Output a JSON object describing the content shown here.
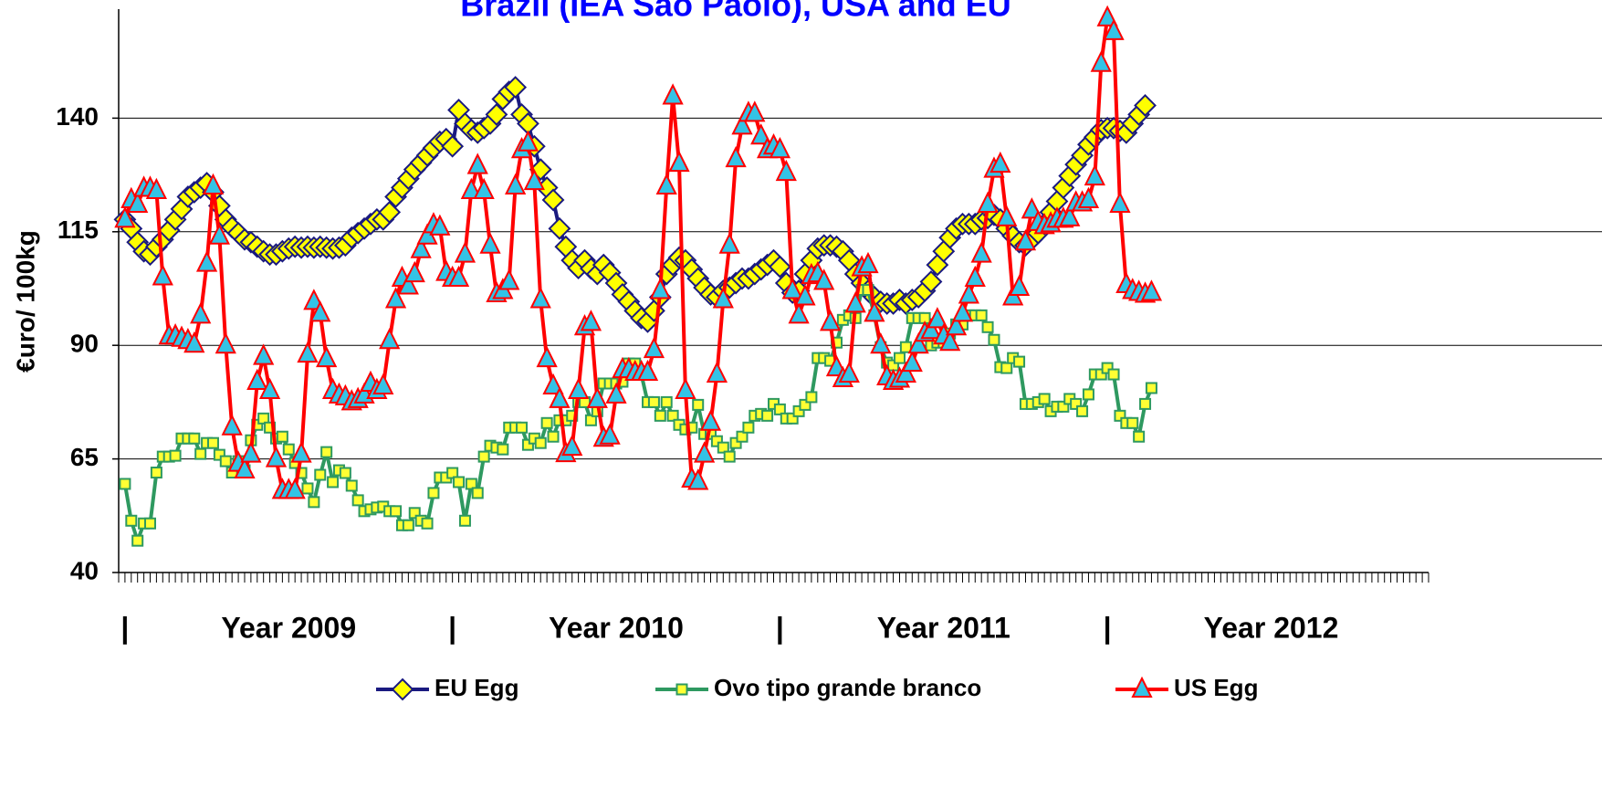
{
  "chart_data": {
    "type": "line",
    "title": "Brazil (IEA  São Paolo), USA and EU",
    "ylabel": "€uro/ 100kg",
    "xlim": [
      0,
      208
    ],
    "xminor_step": 1,
    "xticks": [
      {
        "value": 1,
        "label": "|"
      },
      {
        "value": 53,
        "label": "|"
      },
      {
        "value": 105,
        "label": "|"
      },
      {
        "value": 157,
        "label": "|"
      }
    ],
    "year_labels": [
      {
        "value": 27,
        "label": "Year 2009"
      },
      {
        "value": 79,
        "label": "Year 2010"
      },
      {
        "value": 131,
        "label": "Year 2011"
      },
      {
        "value": 183,
        "label": "Year 2012"
      }
    ],
    "ylim": [
      40,
      165
    ],
    "yticks": [
      40,
      65,
      90,
      115,
      140
    ],
    "grid": true,
    "legend": "bottom",
    "x": [
      1,
      2,
      3,
      4,
      5,
      6,
      7,
      8,
      9,
      10,
      11,
      12,
      13,
      14,
      15,
      16,
      17,
      18,
      19,
      20,
      21,
      22,
      23,
      24,
      25,
      26,
      27,
      28,
      29,
      30,
      31,
      32,
      33,
      34,
      35,
      36,
      37,
      38,
      39,
      40,
      41,
      42,
      43,
      44,
      45,
      46,
      47,
      48,
      49,
      50,
      51,
      52,
      53,
      54,
      55,
      56,
      57,
      58,
      59,
      60,
      61,
      62,
      63,
      64,
      65,
      66,
      67,
      68,
      69,
      70,
      71,
      72,
      73,
      74,
      75,
      76,
      77,
      78,
      79,
      80,
      81,
      82,
      83,
      84,
      85,
      86,
      87,
      88,
      89,
      90,
      91,
      92,
      93,
      94,
      95,
      96,
      97,
      98,
      99,
      100,
      101,
      102,
      103,
      104,
      105,
      106,
      107,
      108,
      109,
      110,
      111,
      112,
      113,
      114,
      115,
      116,
      117,
      118,
      119,
      120,
      121,
      122,
      123,
      124,
      125,
      126,
      127,
      128,
      129,
      130,
      131,
      132,
      133,
      134,
      135,
      136,
      137,
      138,
      139,
      140,
      141,
      142,
      143,
      144,
      145,
      146,
      147,
      148,
      149,
      150,
      151,
      152,
      153,
      154,
      155,
      156,
      157,
      158,
      159,
      160,
      161,
      162,
      163,
      164
    ],
    "series": [
      {
        "name": "EU Egg",
        "color": "#1a1a80",
        "marker": "diamond",
        "marker_color": "#ffff00",
        "values": [
          117.7,
          115.7,
          112.7,
          110.7,
          110,
          111.7,
          113.3,
          115.3,
          117.7,
          120,
          122.7,
          123.7,
          124.7,
          125.7,
          123.7,
          120.7,
          117.7,
          116,
          114.7,
          113.3,
          112.7,
          111.7,
          110.7,
          110,
          110,
          110.7,
          111.3,
          111.7,
          111.5,
          111.7,
          111.5,
          111.7,
          111.5,
          111.3,
          111.5,
          112,
          113.7,
          114.7,
          115.7,
          116.7,
          117.7,
          117.7,
          119.3,
          122.7,
          124.7,
          126.7,
          128.7,
          130.2,
          131.8,
          133.4,
          134.8,
          135.4,
          133.8,
          141.8,
          138.8,
          137.4,
          136.8,
          137.8,
          138.8,
          140.8,
          144.2,
          145.8,
          146.8,
          140.8,
          138.8,
          133.8,
          128.7,
          124.7,
          122,
          115.7,
          111.7,
          108.7,
          107,
          108.7,
          106.9,
          105.7,
          107.7,
          106,
          103.7,
          101.2,
          99.6,
          97.6,
          96,
          95.2,
          97.6,
          100.6,
          105.7,
          107.7,
          109.3,
          108.7,
          106.7,
          104.7,
          102.7,
          101.2,
          100.6,
          102,
          102.7,
          103.7,
          104.7,
          104.7,
          105.7,
          106.7,
          107.7,
          108.7,
          107.3,
          103.7,
          101.6,
          102,
          105.7,
          108.7,
          111.3,
          112,
          112,
          111.7,
          110.7,
          108.7,
          105.7,
          103.7,
          102,
          100.6,
          99.6,
          99.2,
          99.2,
          100,
          99.2,
          100,
          100.6,
          102,
          104,
          107.7,
          110.7,
          113.7,
          115.7,
          116.7,
          116.7,
          116.7,
          117.7,
          118,
          118.7,
          117.7,
          115.7,
          114.1,
          112.7,
          112,
          113.3,
          114.7,
          116.7,
          119.3,
          121.7,
          124.7,
          127.3,
          129.8,
          131.8,
          134.2,
          135.8,
          137.4,
          137.8,
          137.8,
          137.2,
          136.8,
          138.8,
          140.8,
          142.8,
          null
        ]
      },
      {
        "name": "Ovo tipo grande branco",
        "color": "#2e9960",
        "marker": "square",
        "marker_color": "#ffff33",
        "values": [
          59.5,
          51.4,
          47,
          50.8,
          50.8,
          62,
          65.5,
          65.5,
          65.7,
          69.5,
          69.5,
          69.5,
          66.1,
          68.5,
          68.5,
          65.9,
          64.5,
          62,
          64.5,
          62.5,
          69.1,
          72.5,
          73.9,
          71.9,
          69.5,
          69.9,
          67.1,
          64.1,
          61.9,
          58.5,
          55.5,
          61.5,
          66.5,
          59.9,
          62.5,
          61.9,
          59.1,
          55.9,
          53.5,
          53.9,
          54.3,
          54.5,
          53.5,
          53.5,
          50.4,
          50.4,
          53.1,
          51.4,
          50.8,
          57.5,
          60.9,
          60.9,
          61.9,
          59.9,
          51.4,
          59.5,
          57.5,
          65.5,
          67.9,
          67.5,
          67.1,
          71.9,
          71.9,
          71.9,
          68.1,
          69.5,
          68.5,
          72.9,
          69.9,
          73.5,
          73.5,
          74.5,
          77.5,
          77.5,
          73.5,
          75.5,
          81.6,
          81.6,
          81.6,
          82,
          86,
          86,
          83.6,
          77.5,
          77.5,
          74.5,
          77.5,
          74.5,
          72.5,
          71.5,
          71.9,
          76.9,
          70.5,
          70.5,
          68.9,
          67.5,
          65.5,
          68.5,
          69.9,
          71.9,
          74.5,
          74.9,
          74.5,
          77.1,
          75.9,
          73.9,
          73.9,
          75.5,
          76.9,
          78.6,
          87.2,
          87.2,
          86.6,
          90.6,
          95.6,
          96.6,
          96,
          102.2,
          102.2,
          96.6,
          89.6,
          86.2,
          85.6,
          87.2,
          89.6,
          96,
          96,
          96,
          90,
          90.6,
          90.6,
          92.6,
          94.6,
          94.6,
          96.6,
          96.6,
          96.6,
          94,
          91.2,
          85.2,
          85,
          87.2,
          86.4,
          77.1,
          77.1,
          77.5,
          78.2,
          75.5,
          76.5,
          76.5,
          78.2,
          77.1,
          75.5,
          79.2,
          83.6,
          83.6,
          85,
          83.6,
          74.5,
          72.9,
          72.9,
          69.9,
          77.1,
          80.6
        ]
      },
      {
        "name": "US Egg",
        "color": "#ff0000",
        "marker": "triangle",
        "marker_color": "#33c3e6",
        "values": [
          117.7,
          122,
          121,
          124.5,
          124.5,
          124,
          105,
          92,
          92,
          91.5,
          91,
          90.2,
          96.6,
          108,
          125,
          114,
          90,
          72,
          64,
          62.5,
          66,
          82,
          87.5,
          80,
          65,
          58,
          58,
          58,
          66,
          88,
          99.6,
          97,
          87,
          80,
          79,
          78.6,
          77.5,
          78,
          79,
          81.6,
          80,
          81,
          91,
          100,
          104.7,
          103,
          105.7,
          111,
          114,
          116.5,
          116,
          106,
          104.7,
          104.7,
          110,
          124,
          129.5,
          124,
          112,
          101.3,
          102,
          104,
          125,
          133,
          134.5,
          126,
          100,
          87,
          81,
          78,
          66.1,
          67.5,
          80,
          94,
          95,
          78,
          69.5,
          70,
          79,
          84.6,
          84.6,
          84,
          84,
          84,
          89,
          102,
          125,
          144.8,
          130,
          80,
          60.5,
          60,
          66,
          73,
          83.6,
          100,
          112,
          131,
          138.2,
          141,
          141,
          136,
          133,
          133.8,
          133,
          128,
          102,
          96.6,
          100.6,
          105.3,
          105.7,
          104,
          95,
          85,
          82.6,
          83.6,
          99,
          107,
          107.7,
          97,
          90,
          83,
          82,
          82.5,
          83.6,
          86,
          90,
          92.6,
          93.2,
          95.6,
          92,
          90.6,
          94,
          97,
          101,
          104.7,
          110,
          121,
          128.7,
          129.8,
          118,
          100.6,
          102.7,
          112.7,
          119.7,
          117,
          116.3,
          116.7,
          117.7,
          117.7,
          118,
          121.3,
          121.3,
          122,
          127,
          152,
          162,
          159,
          121,
          103.3,
          102,
          101.6,
          101.2,
          101.6
        ]
      }
    ]
  }
}
